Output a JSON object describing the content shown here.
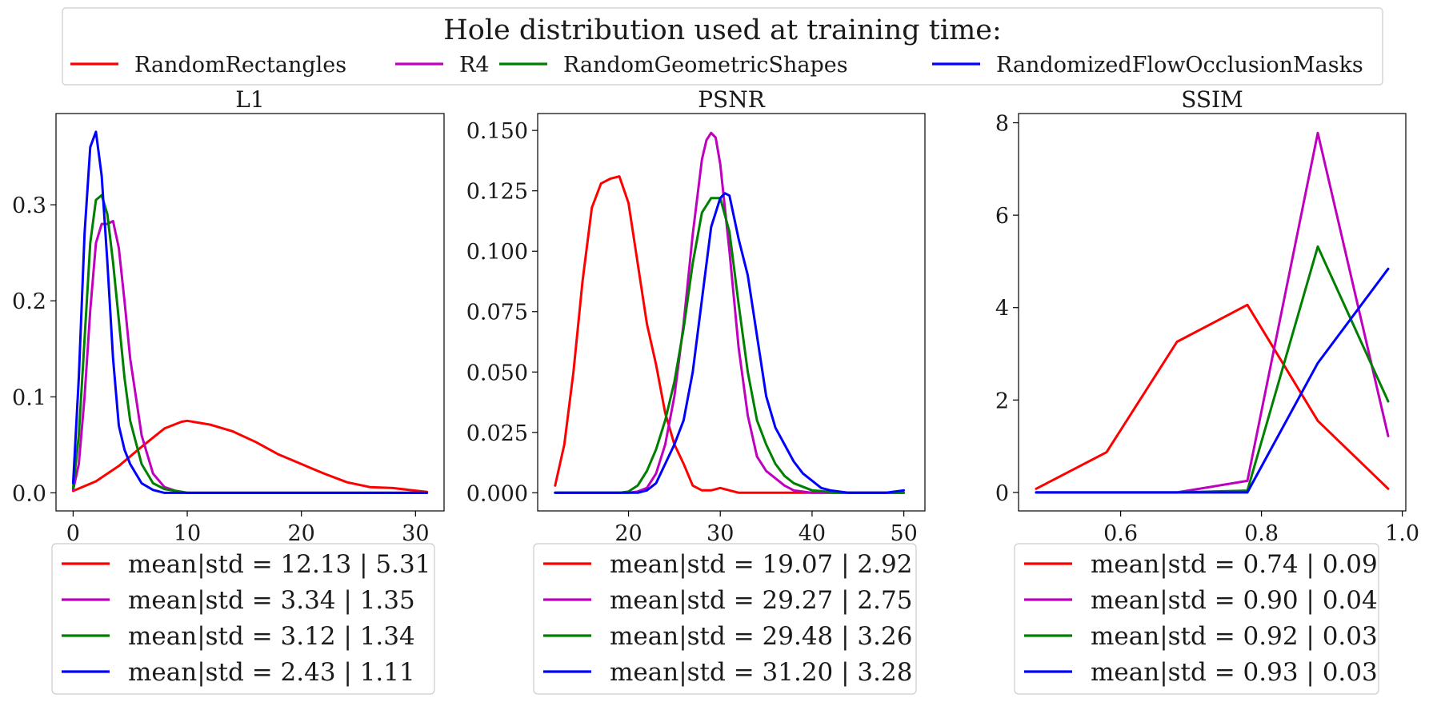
{
  "figure": {
    "legend_title": "Hole distribution used at training time:",
    "series": [
      {
        "name": "RandomRectangles",
        "color": "#ff0000"
      },
      {
        "name": "R4",
        "color": "#bf00bf"
      },
      {
        "name": "RandomGeometricShapes",
        "color": "#008000"
      },
      {
        "name": "RandomizedFlowOcclusionMasks",
        "color": "#0000ff"
      }
    ]
  },
  "chart_data": [
    {
      "type": "line",
      "title": "L1",
      "xlabel": "",
      "ylabel": "",
      "xlim": [
        -1.5,
        32.5
      ],
      "ylim": [
        -0.0188,
        0.395
      ],
      "xticks": [
        0,
        10,
        20,
        30
      ],
      "xtick_labels": [
        "0",
        "10",
        "20",
        "30"
      ],
      "yticks": [
        0,
        0.1,
        0.2,
        0.3
      ],
      "ytick_labels": [
        "0.0",
        "0.1",
        "0.2",
        "0.3"
      ],
      "series": [
        {
          "name": "RandomRectangles",
          "x": [
            0,
            2,
            4,
            6,
            8,
            9.5,
            10,
            12,
            14,
            16,
            18,
            20,
            22,
            24,
            26,
            28,
            31
          ],
          "y": [
            0.002,
            0.012,
            0.028,
            0.048,
            0.067,
            0.074,
            0.075,
            0.071,
            0.064,
            0.053,
            0.04,
            0.03,
            0.02,
            0.011,
            0.006,
            0.005,
            0.001
          ]
        },
        {
          "name": "R4",
          "x": [
            0,
            0.5,
            1,
            1.5,
            2,
            2.5,
            3,
            3.5,
            4,
            4.5,
            5,
            6,
            7,
            8,
            8.5,
            9,
            10,
            31
          ],
          "y": [
            0.003,
            0.03,
            0.1,
            0.19,
            0.26,
            0.28,
            0.28,
            0.283,
            0.255,
            0.2,
            0.14,
            0.06,
            0.02,
            0.006,
            0.004,
            0.002,
            0,
            0
          ]
        },
        {
          "name": "RandomGeometricShapes",
          "x": [
            0,
            0.5,
            1,
            1.5,
            2,
            2.5,
            3,
            3.5,
            4,
            4.5,
            5,
            6,
            7,
            8,
            9,
            10,
            31
          ],
          "y": [
            0.005,
            0.06,
            0.16,
            0.26,
            0.305,
            0.31,
            0.29,
            0.24,
            0.18,
            0.12,
            0.075,
            0.03,
            0.01,
            0.004,
            0.002,
            0,
            0
          ]
        },
        {
          "name": "RandomizedFlowOcclusionMasks",
          "x": [
            0,
            0.5,
            1,
            1.5,
            2,
            2.5,
            3,
            3.5,
            4,
            4.5,
            5,
            6,
            7,
            8,
            31
          ],
          "y": [
            0.01,
            0.12,
            0.27,
            0.36,
            0.376,
            0.33,
            0.24,
            0.14,
            0.07,
            0.045,
            0.03,
            0.01,
            0.003,
            0,
            0
          ]
        }
      ],
      "legend_entries": [
        "mean|std = 12.13 | 5.31",
        "mean|std = 3.34 | 1.35",
        "mean|std = 3.12 | 1.34",
        "mean|std = 2.43 | 1.11"
      ]
    },
    {
      "type": "line",
      "title": "PSNR",
      "xlabel": "",
      "ylabel": "",
      "xlim": [
        10.1,
        52.3
      ],
      "ylim": [
        -0.0075,
        0.157
      ],
      "xticks": [
        20,
        30,
        40,
        50
      ],
      "xtick_labels": [
        "20",
        "30",
        "40",
        "50"
      ],
      "yticks": [
        0,
        0.025,
        0.05,
        0.075,
        0.1,
        0.125,
        0.15
      ],
      "ytick_labels": [
        "0.000",
        "0.025",
        "0.050",
        "0.075",
        "0.100",
        "0.125",
        "0.150"
      ],
      "series": [
        {
          "name": "RandomRectangles",
          "x": [
            12,
            13,
            14,
            15,
            16,
            17,
            18,
            19,
            20,
            21,
            22,
            23,
            24,
            25,
            26,
            27,
            28,
            29,
            30,
            31,
            32,
            50
          ],
          "y": [
            0.003,
            0.02,
            0.05,
            0.088,
            0.118,
            0.128,
            0.13,
            0.131,
            0.12,
            0.095,
            0.07,
            0.053,
            0.033,
            0.02,
            0.012,
            0.003,
            0.001,
            0.001,
            0.002,
            0.001,
            0,
            0
          ]
        },
        {
          "name": "R4",
          "x": [
            12,
            20,
            21,
            22,
            23,
            24,
            25,
            26,
            27,
            28,
            28.5,
            29,
            29.5,
            30,
            31,
            32,
            33,
            34,
            35,
            36,
            37,
            38,
            40,
            50
          ],
          "y": [
            0,
            0,
            0.0005,
            0.002,
            0.008,
            0.02,
            0.04,
            0.07,
            0.107,
            0.138,
            0.146,
            0.149,
            0.147,
            0.136,
            0.1,
            0.06,
            0.032,
            0.015,
            0.009,
            0.006,
            0.003,
            0.001,
            0,
            0
          ]
        },
        {
          "name": "RandomGeometricShapes",
          "x": [
            12,
            19,
            20,
            21,
            22,
            23,
            24,
            25,
            26,
            27,
            28,
            29,
            30,
            31,
            32,
            33,
            34,
            35,
            36,
            37,
            38,
            40,
            43,
            50
          ],
          "y": [
            0,
            0,
            0.0005,
            0.003,
            0.009,
            0.018,
            0.03,
            0.046,
            0.068,
            0.095,
            0.116,
            0.122,
            0.122,
            0.108,
            0.078,
            0.05,
            0.03,
            0.02,
            0.012,
            0.007,
            0.004,
            0.001,
            0,
            0
          ]
        },
        {
          "name": "RandomizedFlowOcclusionMasks",
          "x": [
            12,
            21,
            22,
            23,
            24,
            25,
            26,
            27,
            28,
            29,
            30,
            30.5,
            31,
            32,
            33,
            34,
            35,
            36,
            37,
            38,
            39,
            40,
            41,
            42,
            44,
            46,
            48,
            50
          ],
          "y": [
            0,
            0,
            0.001,
            0.004,
            0.012,
            0.02,
            0.03,
            0.05,
            0.08,
            0.11,
            0.122,
            0.124,
            0.123,
            0.105,
            0.09,
            0.065,
            0.04,
            0.027,
            0.02,
            0.013,
            0.008,
            0.005,
            0.002,
            0.001,
            0,
            0,
            0,
            0.001
          ]
        }
      ],
      "legend_entries": [
        "mean|std = 19.07 | 2.92",
        "mean|std = 29.27 | 2.75",
        "mean|std = 29.48 | 3.26",
        "mean|std = 31.20 | 3.28"
      ]
    },
    {
      "type": "line",
      "title": "SSIM",
      "xlabel": "",
      "ylabel": "",
      "xlim": [
        0.455,
        1.005
      ],
      "ylim": [
        -0.4,
        8.2
      ],
      "xticks": [
        0.6,
        0.8,
        1.0
      ],
      "xtick_labels": [
        "0.6",
        "0.8",
        "1.0"
      ],
      "yticks": [
        0,
        2,
        4,
        6,
        8
      ],
      "ytick_labels": [
        "0",
        "2",
        "4",
        "6",
        "8"
      ],
      "series": [
        {
          "name": "RandomRectangles",
          "x": [
            0.48,
            0.58,
            0.68,
            0.78,
            0.88,
            0.98
          ],
          "y": [
            0.08,
            0.87,
            3.26,
            4.06,
            1.55,
            0.08
          ]
        },
        {
          "name": "R4",
          "x": [
            0.48,
            0.58,
            0.68,
            0.78,
            0.88,
            0.98
          ],
          "y": [
            0,
            0,
            0,
            0.25,
            7.78,
            1.22
          ]
        },
        {
          "name": "RandomGeometricShapes",
          "x": [
            0.48,
            0.58,
            0.68,
            0.78,
            0.88,
            0.98
          ],
          "y": [
            0,
            0,
            0,
            0.04,
            5.32,
            1.97
          ]
        },
        {
          "name": "RandomizedFlowOcclusionMasks",
          "x": [
            0.48,
            0.58,
            0.68,
            0.78,
            0.88,
            0.98
          ],
          "y": [
            0,
            0,
            0,
            0,
            2.8,
            4.84
          ]
        }
      ],
      "legend_entries": [
        "mean|std = 0.74 | 0.09",
        "mean|std = 0.90 | 0.04",
        "mean|std = 0.92 | 0.03",
        "mean|std = 0.93 | 0.03"
      ]
    }
  ]
}
